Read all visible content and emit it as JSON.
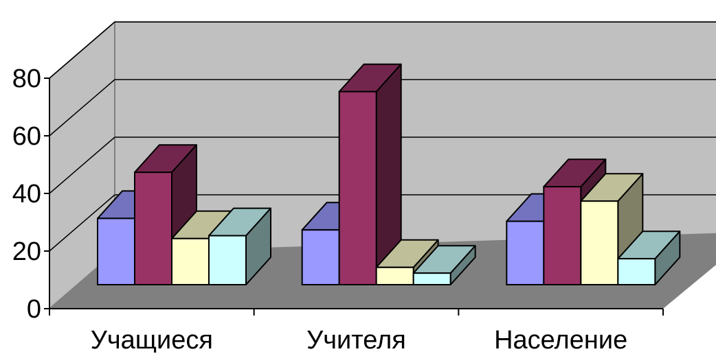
{
  "chart_data": {
    "type": "bar",
    "style": "3d-clustered-column",
    "categories": [
      "Учащиеся",
      "Учителя",
      "Население"
    ],
    "series": [
      {
        "color": "#9999FF",
        "values": [
          23,
          19,
          22
        ]
      },
      {
        "color": "#993366",
        "values": [
          39,
          67,
          34
        ]
      },
      {
        "color": "#FFFFCC",
        "values": [
          16,
          6,
          29
        ]
      },
      {
        "color": "#CCFFFF",
        "values": [
          17,
          4,
          9
        ]
      }
    ],
    "yticks": [
      "0",
      "20",
      "40",
      "60",
      "80"
    ],
    "ylim": [
      0,
      80
    ],
    "grid": true,
    "wall_color": "#C0C0C0",
    "floor_color": "#808080",
    "legend": "none"
  }
}
